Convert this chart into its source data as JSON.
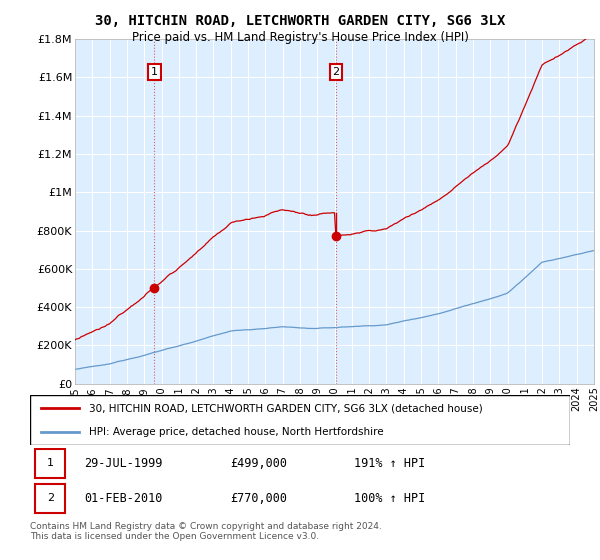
{
  "title": "30, HITCHIN ROAD, LETCHWORTH GARDEN CITY, SG6 3LX",
  "subtitle": "Price paid vs. HM Land Registry's House Price Index (HPI)",
  "ylim": [
    0,
    1800000
  ],
  "yticks": [
    0,
    200000,
    400000,
    600000,
    800000,
    1000000,
    1200000,
    1400000,
    1600000,
    1800000
  ],
  "ytick_labels": [
    "£0",
    "£200K",
    "£400K",
    "£600K",
    "£800K",
    "£1M",
    "£1.2M",
    "£1.4M",
    "£1.6M",
    "£1.8M"
  ],
  "red_line_color": "#cc0000",
  "blue_line_color": "#6699cc",
  "chart_bg_color": "#ddeeff",
  "marker_color": "#cc0000",
  "background_color": "#ffffff",
  "grid_color": "#ffffff",
  "annotation_box_color": "#cc0000",
  "legend_line1": "30, HITCHIN ROAD, LETCHWORTH GARDEN CITY, SG6 3LX (detached house)",
  "legend_line2": "HPI: Average price, detached house, North Hertfordshire",
  "footnote": "Contains HM Land Registry data © Crown copyright and database right 2024.\nThis data is licensed under the Open Government Licence v3.0.",
  "table_rows": [
    [
      "1",
      "29-JUL-1999",
      "£499,000",
      "191% ↑ HPI"
    ],
    [
      "2",
      "01-FEB-2010",
      "£770,000",
      "100% ↑ HPI"
    ]
  ],
  "sale1_x": 1999.58,
  "sale1_price": 499000,
  "sale2_x": 2010.08,
  "sale2_price": 770000,
  "xlim": [
    1995,
    2025
  ],
  "xtick_years": [
    1995,
    1996,
    1997,
    1998,
    1999,
    2000,
    2001,
    2002,
    2003,
    2004,
    2005,
    2006,
    2007,
    2008,
    2009,
    2010,
    2011,
    2012,
    2013,
    2014,
    2015,
    2016,
    2017,
    2018,
    2019,
    2020,
    2021,
    2022,
    2023,
    2024,
    2025
  ]
}
